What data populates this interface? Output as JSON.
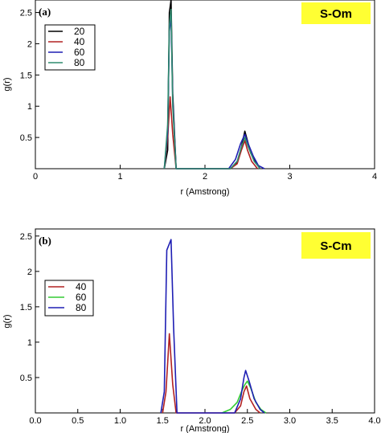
{
  "chart_data": [
    {
      "type": "line",
      "panel_label": "(a)",
      "badge": "S-Om",
      "xlabel": "r (Amstrong)",
      "ylabel": "g(r)",
      "xlim": [
        0,
        4
      ],
      "ylim": [
        0,
        2.7
      ],
      "x_ticks": [
        0,
        1,
        2,
        3,
        4
      ],
      "x_tick_labels": [
        "0",
        "1",
        "2",
        "3",
        "4"
      ],
      "y_ticks": [
        0.5,
        1,
        1.5,
        2,
        2.5
      ],
      "y_tick_labels": [
        "0.5",
        "1",
        "1.5",
        "2",
        "2.5"
      ],
      "legend_position": "top-left",
      "series": [
        {
          "name": "20",
          "color": "#000000",
          "points": [
            [
              1.52,
              0
            ],
            [
              1.56,
              0.3
            ],
            [
              1.58,
              2.5
            ],
            [
              1.6,
              2.7
            ],
            [
              1.62,
              1.2
            ],
            [
              1.66,
              0
            ],
            [
              2.3,
              0
            ],
            [
              2.38,
              0.1
            ],
            [
              2.43,
              0.35
            ],
            [
              2.47,
              0.6
            ],
            [
              2.5,
              0.45
            ],
            [
              2.54,
              0.25
            ],
            [
              2.6,
              0.1
            ],
            [
              2.65,
              0
            ]
          ]
        },
        {
          "name": "40",
          "color": "#b22222",
          "points": [
            [
              1.52,
              0
            ],
            [
              1.56,
              0.5
            ],
            [
              1.59,
              1.15
            ],
            [
              1.62,
              0.55
            ],
            [
              1.66,
              0
            ],
            [
              2.3,
              0
            ],
            [
              2.38,
              0.08
            ],
            [
              2.43,
              0.3
            ],
            [
              2.47,
              0.45
            ],
            [
              2.5,
              0.3
            ],
            [
              2.55,
              0.12
            ],
            [
              2.62,
              0
            ]
          ]
        },
        {
          "name": "60",
          "color": "#1f1fb4",
          "points": [
            [
              1.52,
              0
            ],
            [
              1.56,
              0.6
            ],
            [
              1.58,
              2.2
            ],
            [
              1.6,
              2.45
            ],
            [
              1.62,
              1.1
            ],
            [
              1.66,
              0
            ],
            [
              2.28,
              0
            ],
            [
              2.36,
              0.15
            ],
            [
              2.42,
              0.4
            ],
            [
              2.47,
              0.55
            ],
            [
              2.51,
              0.4
            ],
            [
              2.57,
              0.2
            ],
            [
              2.63,
              0.05
            ],
            [
              2.7,
              0
            ]
          ]
        },
        {
          "name": "80",
          "color": "#2e8b6e",
          "points": [
            [
              1.52,
              0
            ],
            [
              1.56,
              0.7
            ],
            [
              1.58,
              2.3
            ],
            [
              1.6,
              2.55
            ],
            [
              1.62,
              1.0
            ],
            [
              1.66,
              0
            ],
            [
              2.3,
              0
            ],
            [
              2.38,
              0.12
            ],
            [
              2.43,
              0.35
            ],
            [
              2.47,
              0.5
            ],
            [
              2.51,
              0.35
            ],
            [
              2.58,
              0.12
            ],
            [
              2.65,
              0
            ]
          ]
        }
      ]
    },
    {
      "type": "line",
      "panel_label": "(b)",
      "badge": "S-Cm",
      "xlabel": "r (Amstrong)",
      "ylabel": "g(r)",
      "xlim": [
        0,
        4
      ],
      "ylim": [
        0,
        2.6
      ],
      "x_ticks": [
        0,
        0.5,
        1,
        1.5,
        2,
        2.5,
        3,
        3.5,
        4
      ],
      "x_tick_labels": [
        "0.0",
        "0.5",
        "1.0",
        "1.5",
        "2.0",
        "2.5",
        "3.0",
        "3.5",
        "4.0"
      ],
      "y_ticks": [
        0.5,
        1,
        1.5,
        2,
        2.5
      ],
      "y_tick_labels": [
        "0.5",
        "1",
        "1.5",
        "2",
        "2.5"
      ],
      "legend_position": "top-left",
      "series": [
        {
          "name": "40",
          "color": "#b22222",
          "points": [
            [
              1.5,
              0
            ],
            [
              1.54,
              0.3
            ],
            [
              1.58,
              1.12
            ],
            [
              1.62,
              0.4
            ],
            [
              1.66,
              0
            ],
            [
              2.35,
              0
            ],
            [
              2.42,
              0.1
            ],
            [
              2.46,
              0.3
            ],
            [
              2.49,
              0.38
            ],
            [
              2.53,
              0.2
            ],
            [
              2.6,
              0.05
            ],
            [
              2.65,
              0
            ]
          ]
        },
        {
          "name": "60",
          "color": "#33cc33",
          "points": [
            [
              2.2,
              0
            ],
            [
              2.3,
              0.05
            ],
            [
              2.38,
              0.15
            ],
            [
              2.43,
              0.3
            ],
            [
              2.47,
              0.4
            ],
            [
              2.5,
              0.45
            ],
            [
              2.54,
              0.35
            ],
            [
              2.6,
              0.15
            ],
            [
              2.66,
              0.05
            ],
            [
              2.72,
              0
            ]
          ]
        },
        {
          "name": "80",
          "color": "#1f1fb4",
          "points": [
            [
              1.48,
              0
            ],
            [
              1.52,
              0.3
            ],
            [
              1.55,
              2.3
            ],
            [
              1.6,
              2.45
            ],
            [
              1.63,
              1.2
            ],
            [
              1.67,
              0
            ],
            [
              2.35,
              0
            ],
            [
              2.42,
              0.2
            ],
            [
              2.46,
              0.5
            ],
            [
              2.48,
              0.6
            ],
            [
              2.52,
              0.45
            ],
            [
              2.58,
              0.2
            ],
            [
              2.65,
              0.05
            ],
            [
              2.7,
              0
            ]
          ]
        }
      ]
    }
  ]
}
